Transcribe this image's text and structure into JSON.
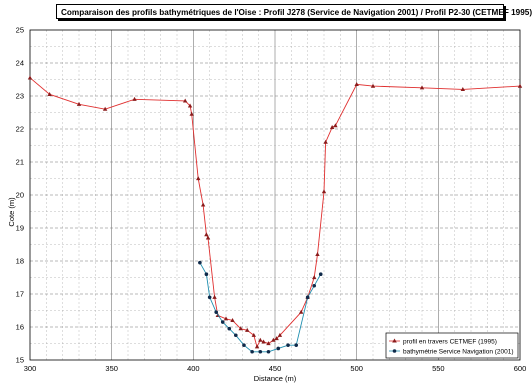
{
  "chart_data": {
    "type": "line",
    "title": "Comparaison des profils bathymétriques de l'Oise : Profil J278 (Service de Navigation 2001) / Profil P2-30 (CETMEF 1995)",
    "xlabel": "Distance (m)",
    "ylabel": "Cote (m)",
    "xlim": [
      300,
      600
    ],
    "ylim": [
      15,
      25
    ],
    "x_ticks": [
      "300",
      "350",
      "400",
      "450",
      "500",
      "550",
      "600"
    ],
    "y_ticks": [
      "15",
      "16",
      "17",
      "18",
      "19",
      "20",
      "21",
      "22",
      "23",
      "24",
      "25"
    ],
    "grid": true,
    "legend_position": "bottom-right",
    "series": [
      {
        "name": "profil en travers CETMEF (1995)",
        "color": "#e03030",
        "marker": "triangle",
        "points": [
          [
            300,
            23.55
          ],
          [
            312,
            23.05
          ],
          [
            330,
            22.75
          ],
          [
            346,
            22.6
          ],
          [
            364,
            22.9
          ],
          [
            395,
            22.85
          ],
          [
            398,
            22.7
          ],
          [
            399,
            22.45
          ],
          [
            403,
            20.5
          ],
          [
            406,
            19.7
          ],
          [
            408,
            18.8
          ],
          [
            409,
            18.7
          ],
          [
            413,
            16.9
          ],
          [
            415,
            16.35
          ],
          [
            420,
            16.25
          ],
          [
            424,
            16.2
          ],
          [
            429,
            15.95
          ],
          [
            433,
            15.9
          ],
          [
            437,
            15.75
          ],
          [
            439,
            15.4
          ],
          [
            441,
            15.6
          ],
          [
            443,
            15.55
          ],
          [
            446,
            15.5
          ],
          [
            449,
            15.6
          ],
          [
            451,
            15.65
          ],
          [
            453,
            15.75
          ],
          [
            466,
            16.45
          ],
          [
            470,
            16.9
          ],
          [
            474,
            17.5
          ],
          [
            476,
            18.2
          ],
          [
            480,
            20.1
          ],
          [
            481,
            21.6
          ],
          [
            485,
            22.05
          ],
          [
            487,
            22.1
          ],
          [
            500,
            23.35
          ],
          [
            510,
            23.3
          ],
          [
            540,
            23.25
          ],
          [
            565,
            23.2
          ],
          [
            600,
            23.3
          ]
        ]
      },
      {
        "name": "bathymétrie Service Navigation  (2001)",
        "color": "#1f8fb0",
        "marker": "circle",
        "points": [
          [
            404,
            17.95
          ],
          [
            408,
            17.6
          ],
          [
            410,
            16.9
          ],
          [
            414,
            16.45
          ],
          [
            418,
            16.15
          ],
          [
            422,
            15.95
          ],
          [
            426,
            15.75
          ],
          [
            431,
            15.45
          ],
          [
            436,
            15.25
          ],
          [
            441,
            15.25
          ],
          [
            446,
            15.25
          ],
          [
            452,
            15.35
          ],
          [
            458,
            15.45
          ],
          [
            463,
            15.45
          ],
          [
            470,
            16.9
          ],
          [
            474,
            17.25
          ],
          [
            478,
            17.6
          ]
        ]
      }
    ]
  }
}
